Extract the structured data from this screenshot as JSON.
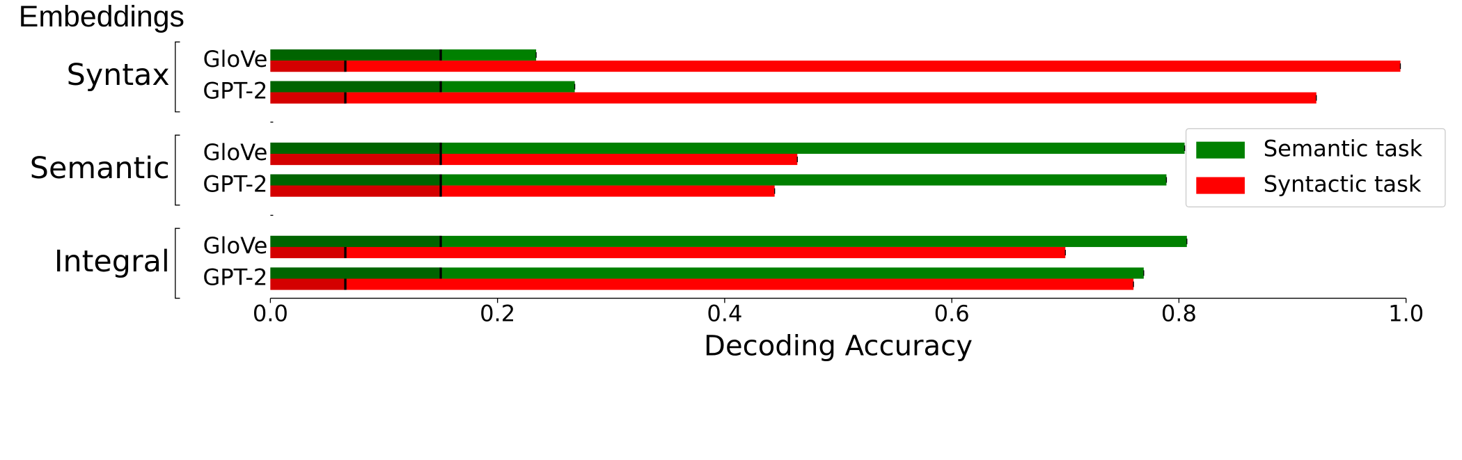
{
  "chart_data": {
    "type": "bar",
    "orientation": "horizontal",
    "title": "Embeddings",
    "x_label": "Decoding Accuracy",
    "groups": [
      {
        "name": "Syntax",
        "categories": [
          "GloVe",
          "GPT-2"
        ]
      },
      {
        "name": "Semantic",
        "categories": [
          "GloVe",
          "GPT-2"
        ]
      },
      {
        "name": "Integral",
        "categories": [
          "GloVe",
          "GPT-2"
        ]
      }
    ],
    "series": [
      {
        "name": "Semantic task",
        "color": "#008000",
        "chance_color": "#006400",
        "values": [
          0.234,
          0.268,
          0.805,
          0.789,
          0.807,
          0.769
        ],
        "chance_values": [
          0.15,
          0.15,
          0.15,
          0.15,
          0.15,
          0.15
        ]
      },
      {
        "name": "Syntactic task",
        "color": "#ff0000",
        "chance_color": "#d40000",
        "values": [
          0.995,
          0.921,
          0.464,
          0.444,
          0.7,
          0.76
        ],
        "chance_values": [
          0.066,
          0.066,
          0.15,
          0.15,
          0.066,
          0.066
        ]
      }
    ],
    "xlim": [
      0,
      1
    ],
    "xticks": [
      {
        "value": 0,
        "label": "0.0"
      },
      0.2,
      0.4,
      0.6,
      0.8,
      {
        "value": 1,
        "label": "1.0"
      }
    ],
    "legend": "center right"
  }
}
